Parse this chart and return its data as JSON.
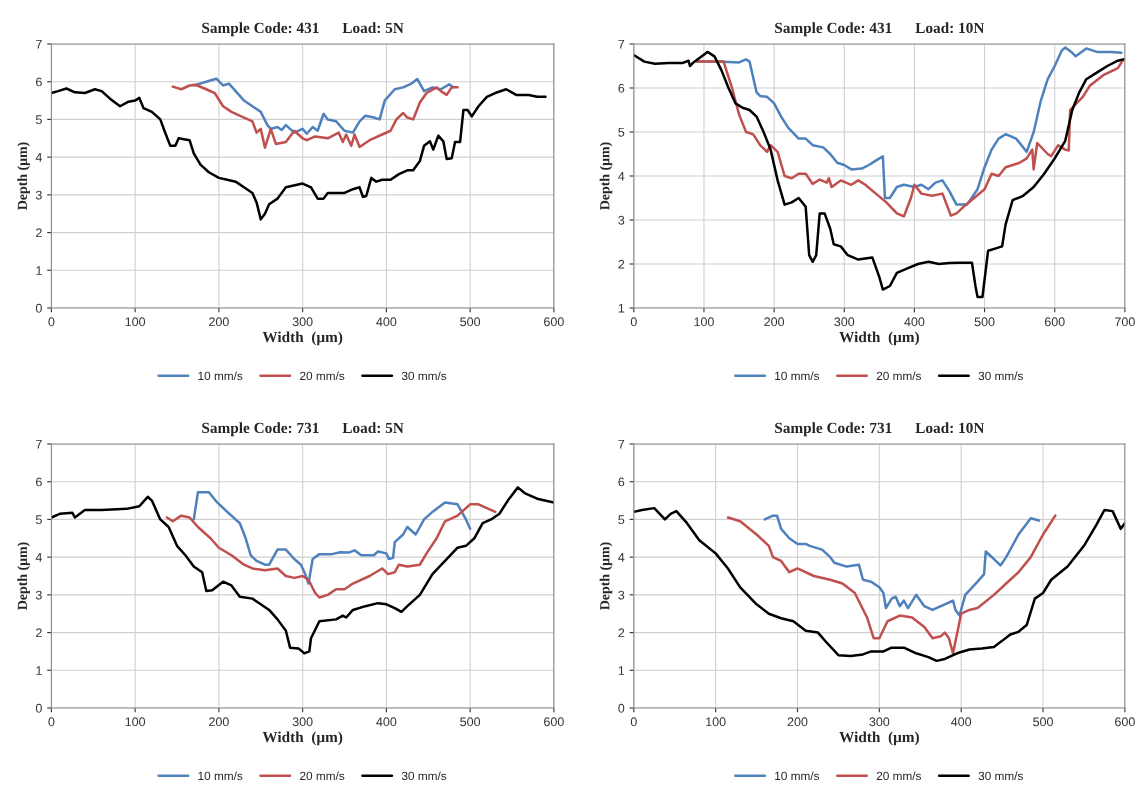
{
  "chart_data": [
    {
      "type": "line",
      "title": "Sample Code: 431      Load: 5N",
      "xlabel": "Width  (μm)",
      "ylabel": "Depth (μm)",
      "xlim": [
        0,
        600
      ],
      "ylim": [
        0,
        7
      ],
      "xticks": [
        0,
        100,
        200,
        300,
        400,
        500,
        600
      ],
      "yticks": [
        0,
        1,
        2,
        3,
        4,
        5,
        6,
        7
      ],
      "grid": true,
      "legend": "bottom",
      "marker": "none",
      "line_style": "solid",
      "series": [
        {
          "name": "10 mm/s",
          "color": "#4f81bd",
          "x": [
            170,
            185,
            197,
            205,
            212,
            220,
            230,
            240,
            250,
            258,
            262,
            270,
            275,
            280,
            290,
            300,
            305,
            312,
            318,
            325,
            330,
            340,
            350,
            360,
            368,
            375,
            385,
            392,
            398,
            410,
            420,
            430,
            437,
            445,
            455,
            465,
            475,
            480
          ],
          "values": [
            5.9,
            6.0,
            6.08,
            5.9,
            5.95,
            5.75,
            5.5,
            5.35,
            5.2,
            4.85,
            4.75,
            4.8,
            4.72,
            4.85,
            4.65,
            4.75,
            4.62,
            4.8,
            4.7,
            5.15,
            5.0,
            4.95,
            4.7,
            4.65,
            4.95,
            5.1,
            5.05,
            5.0,
            5.5,
            5.8,
            5.85,
            5.95,
            6.07,
            5.75,
            5.85,
            5.8,
            5.93,
            5.85
          ]
        },
        {
          "name": "20 mm/s",
          "color": "#c0504d",
          "x": [
            145,
            155,
            165,
            172,
            185,
            195,
            205,
            215,
            230,
            240,
            245,
            250,
            255,
            262,
            268,
            280,
            290,
            300,
            305,
            315,
            330,
            343,
            348,
            352,
            358,
            362,
            368,
            380,
            395,
            405,
            412,
            420,
            425,
            432,
            440,
            448,
            460,
            465,
            472,
            478,
            485
          ],
          "values": [
            5.87,
            5.8,
            5.9,
            5.92,
            5.8,
            5.7,
            5.35,
            5.2,
            5.05,
            4.95,
            4.65,
            4.75,
            4.25,
            4.75,
            4.35,
            4.4,
            4.7,
            4.5,
            4.45,
            4.55,
            4.5,
            4.65,
            4.4,
            4.6,
            4.3,
            4.6,
            4.27,
            4.45,
            4.6,
            4.7,
            5.0,
            5.17,
            5.05,
            5.0,
            5.45,
            5.7,
            5.85,
            5.75,
            5.65,
            5.85,
            5.85
          ]
        },
        {
          "name": "30 mm/s",
          "color": "#000000",
          "x": [
            0,
            8,
            18,
            28,
            40,
            52,
            60,
            70,
            82,
            92,
            100,
            105,
            110,
            120,
            130,
            135,
            142,
            148,
            152,
            160,
            165,
            170,
            178,
            188,
            200,
            210,
            220,
            230,
            240,
            245,
            250,
            255,
            260,
            270,
            280,
            300,
            310,
            318,
            325,
            330,
            340,
            350,
            360,
            368,
            372,
            376,
            382,
            388,
            395,
            405,
            415,
            425,
            432,
            440,
            445,
            452,
            456,
            462,
            468,
            472,
            478,
            482,
            488,
            492,
            497,
            502,
            510,
            520,
            530,
            543,
            555,
            570,
            580,
            590
          ],
          "values": [
            5.7,
            5.75,
            5.82,
            5.72,
            5.7,
            5.8,
            5.75,
            5.55,
            5.35,
            5.47,
            5.5,
            5.57,
            5.3,
            5.2,
            5.0,
            4.7,
            4.3,
            4.3,
            4.5,
            4.47,
            4.45,
            4.1,
            3.8,
            3.6,
            3.45,
            3.4,
            3.35,
            3.2,
            3.05,
            2.8,
            2.35,
            2.5,
            2.75,
            2.9,
            3.2,
            3.3,
            3.2,
            2.9,
            2.9,
            3.05,
            3.05,
            3.05,
            3.15,
            3.2,
            2.95,
            2.97,
            3.45,
            3.35,
            3.4,
            3.4,
            3.55,
            3.65,
            3.65,
            3.9,
            4.3,
            4.42,
            4.2,
            4.57,
            4.42,
            3.95,
            3.97,
            4.4,
            4.4,
            5.25,
            5.25,
            5.08,
            5.35,
            5.6,
            5.7,
            5.8,
            5.65,
            5.65,
            5.6,
            5.6
          ]
        }
      ]
    },
    {
      "type": "line",
      "title": "Sample Code: 431      Load: 10N",
      "xlabel": "Width  (μm)",
      "ylabel": "Depth (μm)",
      "xlim": [
        0,
        700
      ],
      "ylim": [
        1,
        7
      ],
      "xticks": [
        0,
        100,
        200,
        300,
        400,
        500,
        600,
        700
      ],
      "yticks": [
        1,
        2,
        3,
        4,
        5,
        6,
        7
      ],
      "grid": true,
      "legend": "bottom",
      "marker": "none",
      "line_style": "solid",
      "series": [
        {
          "name": "10 mm/s",
          "color": "#4f81bd",
          "x": [
            90,
            120,
            150,
            160,
            165,
            175,
            180,
            190,
            200,
            210,
            220,
            235,
            245,
            255,
            270,
            280,
            290,
            300,
            310,
            325,
            335,
            345,
            355,
            358,
            365,
            375,
            385,
            400,
            410,
            420,
            430,
            440,
            450,
            460,
            475,
            490,
            500,
            510,
            520,
            530,
            545,
            560,
            570,
            580,
            590,
            600,
            610,
            615,
            625,
            630,
            645,
            660,
            680,
            695
          ],
          "values": [
            6.6,
            6.6,
            6.58,
            6.65,
            6.6,
            5.9,
            5.82,
            5.8,
            5.65,
            5.35,
            5.1,
            4.85,
            4.85,
            4.7,
            4.65,
            4.5,
            4.3,
            4.25,
            4.15,
            4.17,
            4.25,
            4.35,
            4.45,
            3.5,
            3.5,
            3.75,
            3.8,
            3.75,
            3.8,
            3.7,
            3.85,
            3.9,
            3.65,
            3.35,
            3.35,
            3.7,
            4.2,
            4.6,
            4.85,
            4.95,
            4.85,
            4.55,
            5.0,
            5.7,
            6.2,
            6.5,
            6.85,
            6.92,
            6.8,
            6.72,
            6.9,
            6.82,
            6.82,
            6.8
          ]
        },
        {
          "name": "20 mm/s",
          "color": "#c0504d",
          "x": [
            90,
            120,
            128,
            140,
            150,
            160,
            170,
            180,
            190,
            195,
            205,
            215,
            225,
            235,
            245,
            255,
            265,
            275,
            278,
            282,
            295,
            310,
            320,
            330,
            345,
            360,
            375,
            385,
            395,
            400,
            410,
            425,
            440,
            452,
            460,
            470,
            485,
            500,
            510,
            520,
            530,
            550,
            560,
            568,
            570,
            575,
            590,
            595,
            605,
            615,
            620,
            622,
            640,
            650,
            670,
            690,
            698
          ],
          "values": [
            6.6,
            6.6,
            6.6,
            6.0,
            5.4,
            5.0,
            4.95,
            4.7,
            4.55,
            4.7,
            4.55,
            4.0,
            3.95,
            4.05,
            4.05,
            3.82,
            3.92,
            3.85,
            3.95,
            3.75,
            3.9,
            3.8,
            3.9,
            3.8,
            3.6,
            3.4,
            3.15,
            3.08,
            3.5,
            3.8,
            3.6,
            3.55,
            3.6,
            3.1,
            3.15,
            3.3,
            3.5,
            3.7,
            4.05,
            4.0,
            4.2,
            4.3,
            4.4,
            4.6,
            4.15,
            4.75,
            4.5,
            4.45,
            4.7,
            4.6,
            4.58,
            5.5,
            5.8,
            6.05,
            6.3,
            6.45,
            6.65
          ]
        },
        {
          "name": "30 mm/s",
          "color": "#000000",
          "x": [
            0,
            5,
            15,
            30,
            50,
            70,
            78,
            80,
            85,
            95,
            105,
            115,
            125,
            135,
            145,
            155,
            165,
            175,
            185,
            195,
            205,
            215,
            225,
            235,
            245,
            250,
            255,
            260,
            265,
            272,
            280,
            285,
            295,
            305,
            320,
            340,
            350,
            355,
            365,
            375,
            390,
            405,
            420,
            435,
            450,
            465,
            482,
            487,
            490,
            497,
            505,
            515,
            525,
            530,
            540,
            555,
            570,
            585,
            600,
            615,
            625,
            635,
            645,
            660,
            675,
            690,
            698
          ],
          "values": [
            6.75,
            6.7,
            6.6,
            6.55,
            6.57,
            6.57,
            6.62,
            6.5,
            6.58,
            6.7,
            6.82,
            6.72,
            6.4,
            6.0,
            5.65,
            5.55,
            5.5,
            5.35,
            5.0,
            4.6,
            3.9,
            3.35,
            3.4,
            3.5,
            3.3,
            2.2,
            2.05,
            2.2,
            3.15,
            3.15,
            2.8,
            2.45,
            2.4,
            2.2,
            2.1,
            2.15,
            1.7,
            1.42,
            1.5,
            1.8,
            1.9,
            2.0,
            2.05,
            2.0,
            2.02,
            2.03,
            2.03,
            1.5,
            1.25,
            1.25,
            2.3,
            2.35,
            2.4,
            2.9,
            3.45,
            3.55,
            3.75,
            4.05,
            4.4,
            4.8,
            5.5,
            5.9,
            6.2,
            6.35,
            6.5,
            6.62,
            6.65
          ]
        }
      ]
    },
    {
      "type": "line",
      "title": "Sample Code: 731      Load: 5N",
      "xlabel": "Width  (μm)",
      "ylabel": "Depth (μm)",
      "xlim": [
        0,
        600
      ],
      "ylim": [
        0,
        7
      ],
      "xticks": [
        0,
        100,
        200,
        300,
        400,
        500,
        600
      ],
      "yticks": [
        0,
        1,
        2,
        3,
        4,
        5,
        6,
        7
      ],
      "grid": true,
      "legend": "bottom",
      "marker": "none",
      "line_style": "solid",
      "series": [
        {
          "name": "10 mm/s",
          "color": "#4f81bd",
          "x": [
            170,
            175,
            188,
            198,
            210,
            225,
            232,
            238,
            245,
            255,
            260,
            270,
            280,
            290,
            298,
            303,
            307,
            312,
            320,
            335,
            345,
            355,
            362,
            370,
            385,
            390,
            400,
            403,
            408,
            410,
            420,
            425,
            435,
            445,
            455,
            470,
            485,
            495,
            500
          ],
          "values": [
            5.0,
            5.72,
            5.72,
            5.45,
            5.2,
            4.9,
            4.5,
            4.05,
            3.9,
            3.8,
            3.8,
            4.2,
            4.2,
            3.95,
            3.8,
            3.55,
            3.3,
            3.95,
            4.08,
            4.08,
            4.13,
            4.12,
            4.18,
            4.05,
            4.05,
            4.15,
            4.1,
            3.95,
            3.98,
            4.4,
            4.6,
            4.8,
            4.6,
            5.0,
            5.2,
            5.45,
            5.4,
            5.0,
            4.75
          ]
        },
        {
          "name": "20 mm/s",
          "color": "#c0504d",
          "x": [
            138,
            145,
            155,
            165,
            175,
            190,
            200,
            215,
            230,
            240,
            255,
            270,
            280,
            290,
            300,
            307,
            315,
            320,
            330,
            340,
            350,
            360,
            380,
            395,
            402,
            410,
            415,
            425,
            440,
            448,
            460,
            470,
            485,
            500,
            510,
            520,
            530
          ],
          "values": [
            5.05,
            4.95,
            5.1,
            5.05,
            4.8,
            4.5,
            4.25,
            4.05,
            3.8,
            3.7,
            3.65,
            3.7,
            3.5,
            3.45,
            3.5,
            3.4,
            3.05,
            2.93,
            3.0,
            3.15,
            3.15,
            3.3,
            3.5,
            3.7,
            3.55,
            3.6,
            3.8,
            3.75,
            3.8,
            4.1,
            4.5,
            4.95,
            5.1,
            5.4,
            5.4,
            5.3,
            5.2
          ]
        },
        {
          "name": "30 mm/s",
          "color": "#000000",
          "x": [
            0,
            10,
            25,
            28,
            40,
            60,
            90,
            105,
            115,
            120,
            130,
            140,
            150,
            160,
            170,
            180,
            185,
            192,
            205,
            215,
            225,
            240,
            250,
            260,
            270,
            280,
            285,
            295,
            302,
            308,
            310,
            320,
            340,
            348,
            352,
            360,
            375,
            390,
            400,
            410,
            418,
            425,
            440,
            455,
            470,
            485,
            495,
            505,
            515,
            525,
            535,
            545,
            557,
            565,
            580,
            600
          ],
          "values": [
            5.05,
            5.15,
            5.18,
            5.05,
            5.25,
            5.25,
            5.28,
            5.35,
            5.6,
            5.5,
            5.0,
            4.8,
            4.3,
            4.05,
            3.75,
            3.6,
            3.1,
            3.12,
            3.35,
            3.25,
            2.95,
            2.9,
            2.75,
            2.6,
            2.35,
            2.05,
            1.6,
            1.58,
            1.45,
            1.5,
            1.85,
            2.3,
            2.35,
            2.45,
            2.4,
            2.6,
            2.7,
            2.78,
            2.75,
            2.65,
            2.55,
            2.7,
            3.0,
            3.55,
            3.9,
            4.25,
            4.3,
            4.5,
            4.9,
            5.0,
            5.15,
            5.5,
            5.85,
            5.7,
            5.55,
            5.45
          ]
        }
      ]
    },
    {
      "type": "line",
      "title": "Sample Code: 731      Load: 10N",
      "xlabel": "Width  (μm)",
      "ylabel": "Depth (μm)",
      "xlim": [
        0,
        600
      ],
      "ylim": [
        0,
        7
      ],
      "xticks": [
        0,
        100,
        200,
        300,
        400,
        500,
        600
      ],
      "yticks": [
        0,
        1,
        2,
        3,
        4,
        5,
        6,
        7
      ],
      "grid": true,
      "legend": "bottom",
      "marker": "none",
      "line_style": "solid",
      "series": [
        {
          "name": "10 mm/s",
          "color": "#4f81bd",
          "x": [
            160,
            170,
            175,
            180,
            190,
            200,
            210,
            215,
            230,
            240,
            245,
            260,
            275,
            280,
            290,
            300,
            305,
            308,
            315,
            320,
            325,
            330,
            335,
            345,
            355,
            365,
            380,
            390,
            393,
            398,
            405,
            420,
            428,
            430,
            440,
            448,
            455,
            470,
            485,
            495
          ],
          "values": [
            5.0,
            5.1,
            5.1,
            4.75,
            4.5,
            4.35,
            4.35,
            4.3,
            4.2,
            4.0,
            3.85,
            3.75,
            3.8,
            3.4,
            3.35,
            3.2,
            3.05,
            2.65,
            2.9,
            2.95,
            2.7,
            2.85,
            2.65,
            3.0,
            2.7,
            2.6,
            2.75,
            2.85,
            2.6,
            2.45,
            3.0,
            3.35,
            3.55,
            4.15,
            3.95,
            3.78,
            4.0,
            4.6,
            5.03,
            4.97
          ]
        },
        {
          "name": "20 mm/s",
          "color": "#c0504d",
          "x": [
            115,
            130,
            150,
            165,
            170,
            180,
            190,
            200,
            220,
            240,
            255,
            270,
            285,
            293,
            300,
            310,
            325,
            340,
            355,
            365,
            375,
            380,
            385,
            390,
            400,
            410,
            420,
            440,
            455,
            470,
            485,
            500,
            515
          ],
          "values": [
            5.05,
            4.95,
            4.6,
            4.3,
            4.0,
            3.9,
            3.6,
            3.7,
            3.5,
            3.4,
            3.3,
            3.05,
            2.4,
            1.85,
            1.85,
            2.3,
            2.45,
            2.4,
            2.15,
            1.85,
            1.9,
            2.0,
            1.85,
            1.45,
            2.5,
            2.6,
            2.65,
            3.0,
            3.3,
            3.6,
            4.0,
            4.6,
            5.1
          ]
        },
        {
          "name": "30 mm/s",
          "color": "#000000",
          "x": [
            0,
            10,
            25,
            38,
            45,
            52,
            65,
            80,
            100,
            115,
            130,
            150,
            165,
            180,
            195,
            210,
            225,
            235,
            250,
            265,
            280,
            290,
            305,
            315,
            330,
            345,
            360,
            370,
            380,
            395,
            410,
            425,
            440,
            450,
            460,
            470,
            480,
            490,
            500,
            510,
            530,
            550,
            565,
            575,
            585,
            595,
            600
          ],
          "values": [
            5.2,
            5.25,
            5.3,
            5.0,
            5.15,
            5.22,
            4.9,
            4.45,
            4.1,
            3.7,
            3.2,
            2.75,
            2.5,
            2.38,
            2.3,
            2.05,
            2.0,
            1.75,
            1.4,
            1.38,
            1.42,
            1.5,
            1.5,
            1.6,
            1.6,
            1.45,
            1.35,
            1.25,
            1.3,
            1.45,
            1.55,
            1.58,
            1.62,
            1.78,
            1.95,
            2.02,
            2.2,
            2.9,
            3.05,
            3.4,
            3.75,
            4.3,
            4.85,
            5.25,
            5.22,
            4.75,
            4.9
          ]
        }
      ]
    }
  ]
}
